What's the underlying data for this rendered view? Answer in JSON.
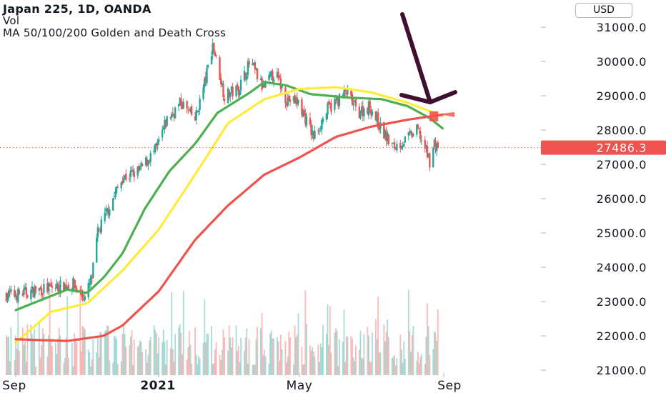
{
  "header": {
    "title": "Japan 225, 1D, OANDA",
    "vol_label": "Vol",
    "ma_label": "MA 50/100/200 Golden and Death Cross",
    "currency": "USD"
  },
  "price_label": "27486.3",
  "colors": {
    "up_candle": "#26a69a",
    "down_candle": "#ef5350",
    "ma50": "#4caf50",
    "ma100": "#ffeb3b",
    "ma200": "#f0524d",
    "price_line": "#ef5350",
    "arrow": "#3f1030",
    "cross_marker": "#f0524d"
  },
  "annotations": {
    "arrow": "pointing to the death cross near late August",
    "marker": "death-cross-marker"
  },
  "chart_data": {
    "type": "candlestick",
    "title": "Japan 225, 1D, OANDA",
    "ylim": [
      20800,
      31700
    ],
    "y_ticks": [
      21000,
      22000,
      23000,
      24000,
      25000,
      26000,
      27000,
      28000,
      29000,
      30000,
      31000
    ],
    "y_tick_labels": [
      "21000.0",
      "22000.0",
      "23000.0",
      "24000.0",
      "25000.0",
      "26000.0",
      "27000.0",
      "28000.0",
      "29000.0",
      "30000.0",
      "31000.0"
    ],
    "x_tick_labels": [
      "Sep",
      "2021",
      "May",
      "Sep"
    ],
    "x_tick_dates": [
      "2020-09-01",
      "2021-01-01",
      "2021-05-01",
      "2021-09-01"
    ],
    "x_range": [
      "2020-09-01",
      "2021-09-01"
    ],
    "current_price": 27486.3,
    "close_keypoints": [
      [
        "2020-09-01",
        23200
      ],
      [
        "2020-09-15",
        23300
      ],
      [
        "2020-10-01",
        23400
      ],
      [
        "2020-10-20",
        23500
      ],
      [
        "2020-10-30",
        23100
      ],
      [
        "2020-11-05",
        23700
      ],
      [
        "2020-11-10",
        25000
      ],
      [
        "2020-11-20",
        25800
      ],
      [
        "2020-12-01",
        26600
      ],
      [
        "2020-12-15",
        26800
      ],
      [
        "2020-12-30",
        27450
      ],
      [
        "2021-01-08",
        28300
      ],
      [
        "2021-01-20",
        28800
      ],
      [
        "2021-02-01",
        28300
      ],
      [
        "2021-02-10",
        29500
      ],
      [
        "2021-02-16",
        30500
      ],
      [
        "2021-02-26",
        29000
      ],
      [
        "2021-03-10",
        29200
      ],
      [
        "2021-03-20",
        30000
      ],
      [
        "2021-03-31",
        29200
      ],
      [
        "2021-04-10",
        29700
      ],
      [
        "2021-04-20",
        28900
      ],
      [
        "2021-04-30",
        28800
      ],
      [
        "2021-05-13",
        27800
      ],
      [
        "2021-05-25",
        28600
      ],
      [
        "2021-06-10",
        29100
      ],
      [
        "2021-06-20",
        28500
      ],
      [
        "2021-06-30",
        28700
      ],
      [
        "2021-07-10",
        28000
      ],
      [
        "2021-07-20",
        27500
      ],
      [
        "2021-07-30",
        27700
      ],
      [
        "2021-08-10",
        28000
      ],
      [
        "2021-08-20",
        27100
      ],
      [
        "2021-08-24",
        27600
      ],
      [
        "2021-08-28",
        27500
      ]
    ],
    "series": [
      {
        "name": "MA 50",
        "points": [
          [
            "2020-09-01",
            22750
          ],
          [
            "2020-10-15",
            23350
          ],
          [
            "2020-11-01",
            23250
          ],
          [
            "2020-11-15",
            23700
          ],
          [
            "2020-12-01",
            24400
          ],
          [
            "2020-12-20",
            25700
          ],
          [
            "2021-01-10",
            26800
          ],
          [
            "2021-02-01",
            27600
          ],
          [
            "2021-02-20",
            28500
          ],
          [
            "2021-03-20",
            29100
          ],
          [
            "2021-04-01",
            29400
          ],
          [
            "2021-04-20",
            29300
          ],
          [
            "2021-05-10",
            29050
          ],
          [
            "2021-06-10",
            28950
          ],
          [
            "2021-07-10",
            28900
          ],
          [
            "2021-08-01",
            28700
          ],
          [
            "2021-08-20",
            28350
          ],
          [
            "2021-08-31",
            28050
          ]
        ]
      },
      {
        "name": "MA 100",
        "points": [
          [
            "2020-09-01",
            21800
          ],
          [
            "2020-10-01",
            22700
          ],
          [
            "2020-11-01",
            22950
          ],
          [
            "2020-12-01",
            23900
          ],
          [
            "2021-01-01",
            25100
          ],
          [
            "2021-02-01",
            26700
          ],
          [
            "2021-03-01",
            28200
          ],
          [
            "2021-04-01",
            28900
          ],
          [
            "2021-05-01",
            29200
          ],
          [
            "2021-06-01",
            29250
          ],
          [
            "2021-07-01",
            29100
          ],
          [
            "2021-08-01",
            28800
          ],
          [
            "2021-08-31",
            28400
          ]
        ]
      },
      {
        "name": "MA 200",
        "points": [
          [
            "2020-09-01",
            21900
          ],
          [
            "2020-10-15",
            21850
          ],
          [
            "2020-11-15",
            22000
          ],
          [
            "2020-12-01",
            22300
          ],
          [
            "2021-01-01",
            23300
          ],
          [
            "2021-02-01",
            24800
          ],
          [
            "2021-03-01",
            25800
          ],
          [
            "2021-04-01",
            26700
          ],
          [
            "2021-05-01",
            27200
          ],
          [
            "2021-06-01",
            27800
          ],
          [
            "2021-07-01",
            28100
          ],
          [
            "2021-08-01",
            28300
          ],
          [
            "2021-08-31",
            28450
          ]
        ]
      }
    ],
    "death_cross": {
      "date": "2021-08-23",
      "value": 28400
    }
  }
}
